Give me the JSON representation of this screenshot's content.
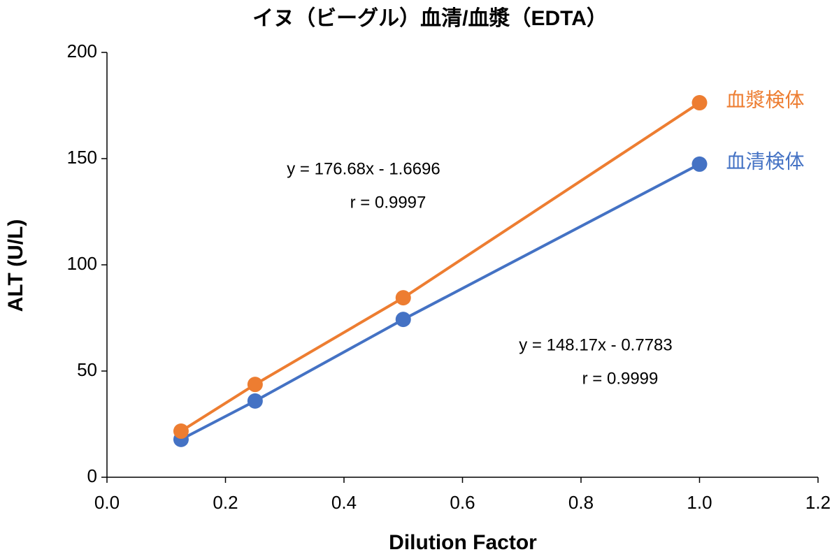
{
  "chart_data": {
    "type": "scatter-line",
    "title": "イヌ（ビーグル）血清/血漿（EDTA）",
    "x_label": "Dilution Factor",
    "y_label": "ALT (U/L)",
    "x": [
      0.125,
      0.25,
      0.5,
      1.0
    ],
    "series": [
      {
        "name": "血清検体",
        "color": "#4472c4",
        "values": [
          17.8,
          35.9,
          74.3,
          147.4
        ]
      },
      {
        "name": "血漿検体",
        "color": "#ed7d31",
        "values": [
          21.7,
          43.7,
          84.5,
          176.3
        ]
      }
    ],
    "annotations": [
      {
        "lines": [
          "y = 176.68x - 1.6696",
          "r = 0.9997"
        ],
        "series": 1
      },
      {
        "lines": [
          "y = 148.17x - 0.7783",
          "r = 0.9999"
        ],
        "series": 0
      }
    ],
    "xlim": [
      0,
      1.2
    ],
    "xticks": [
      {
        "value": 0,
        "label": "0.0"
      },
      {
        "value": 0.2,
        "label": "0.2"
      },
      {
        "value": 0.4,
        "label": "0.4"
      },
      {
        "value": 0.6,
        "label": "0.6"
      },
      {
        "value": 0.8,
        "label": "0.8"
      },
      {
        "value": 1.0,
        "label": "1.0"
      },
      {
        "value": 1.2,
        "label": "1.2"
      }
    ],
    "ylim": [
      0,
      200
    ],
    "yticks": [
      0,
      50,
      100,
      150,
      200
    ],
    "grid": false
  }
}
